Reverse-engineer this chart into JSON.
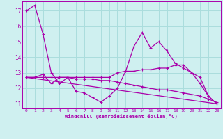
{
  "background_color": "#cff0f0",
  "grid_color": "#aadddd",
  "line_color": "#aa00aa",
  "xlabel": "Windchill (Refroidissement éolien,°C)",
  "xlim": [
    -0.5,
    23.5
  ],
  "ylim": [
    10.7,
    17.6
  ],
  "yticks": [
    11,
    12,
    13,
    14,
    15,
    16,
    17
  ],
  "xticks": [
    0,
    1,
    2,
    3,
    4,
    5,
    6,
    7,
    8,
    9,
    10,
    11,
    12,
    13,
    14,
    15,
    16,
    17,
    18,
    19,
    20,
    21,
    22,
    23
  ],
  "series1_x": [
    0,
    1,
    2,
    3,
    4,
    5,
    6,
    7,
    8,
    9,
    10,
    11,
    12,
    13,
    14,
    15,
    16,
    17,
    18,
    19,
    20,
    21,
    22,
    23
  ],
  "series1_y": [
    17.0,
    17.35,
    15.5,
    13.0,
    12.3,
    12.7,
    11.8,
    11.7,
    11.4,
    11.1,
    11.5,
    12.0,
    13.1,
    14.7,
    15.6,
    14.6,
    15.0,
    14.4,
    13.6,
    13.3,
    13.0,
    12.3,
    11.5,
    11.0
  ],
  "series2_x": [
    0,
    1,
    2,
    3,
    4,
    5,
    6,
    7,
    8,
    9,
    10,
    11,
    12,
    13,
    14,
    15,
    16,
    17,
    18,
    19,
    20,
    21,
    22,
    23
  ],
  "series2_y": [
    12.7,
    12.7,
    12.9,
    12.3,
    12.7,
    12.7,
    12.7,
    12.7,
    12.7,
    12.7,
    12.7,
    13.0,
    13.1,
    13.1,
    13.2,
    13.2,
    13.3,
    13.3,
    13.5,
    13.5,
    13.0,
    12.7,
    11.5,
    11.0
  ],
  "series3_x": [
    0,
    1,
    2,
    3,
    4,
    5,
    6,
    7,
    8,
    9,
    10,
    11,
    12,
    13,
    14,
    15,
    16,
    17,
    18,
    19,
    20,
    21,
    22,
    23
  ],
  "series3_y": [
    12.7,
    12.7,
    12.7,
    12.7,
    12.7,
    12.7,
    12.6,
    12.6,
    12.6,
    12.5,
    12.5,
    12.4,
    12.3,
    12.2,
    12.1,
    12.0,
    11.9,
    11.9,
    11.8,
    11.7,
    11.6,
    11.5,
    11.3,
    11.1
  ],
  "series4_x": [
    0,
    23
  ],
  "series4_y": [
    12.7,
    11.0
  ]
}
